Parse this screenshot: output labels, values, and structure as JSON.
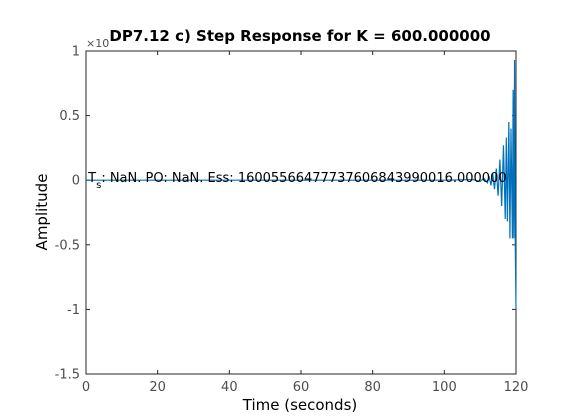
{
  "chart_data": {
    "type": "line",
    "title": "DP7.12 c) Step Response for K = 600.000000",
    "xlabel": "Time (seconds)",
    "ylabel": "Amplitude",
    "xlim": [
      0,
      120
    ],
    "ylim": [
      -1.5,
      1
    ],
    "y_exponent_label": "×10",
    "xticks": [
      0,
      20,
      40,
      60,
      80,
      100,
      120
    ],
    "yticks": [
      -1.5,
      -1,
      -0.5,
      0,
      0.5,
      1
    ],
    "ytick_labels": [
      "-1.5",
      "-1",
      "-0.5",
      "0",
      "0.5",
      "1"
    ],
    "annotation": {
      "prefix": "T",
      "subscript": "s",
      "rest": ": NaN. PO: NaN. Ess: 16005566477737606843990016.000000",
      "x": 0.6,
      "y": 0
    },
    "line_color": "#0072BD",
    "grid": false,
    "series": [
      {
        "x": [
          0,
          20,
          40,
          60,
          80,
          100,
          108,
          110,
          111,
          112,
          112.5,
          113,
          113.5,
          114,
          114.5,
          115,
          115.5,
          116,
          116.5,
          117,
          117.3,
          117.6,
          118,
          118.3,
          118.6,
          119,
          119.2,
          119.4,
          119.6,
          119.8,
          120
        ],
        "values": [
          0,
          0,
          0,
          0,
          0,
          0,
          0.005,
          -0.01,
          0.015,
          -0.02,
          0.03,
          -0.04,
          0.05,
          -0.07,
          0.09,
          -0.12,
          0.16,
          -0.2,
          0.27,
          -0.3,
          0.33,
          -0.32,
          0.45,
          -0.45,
          0.4,
          -0.45,
          0.7,
          -0.45,
          0.93,
          -0.5,
          -1.0
        ]
      }
    ]
  }
}
